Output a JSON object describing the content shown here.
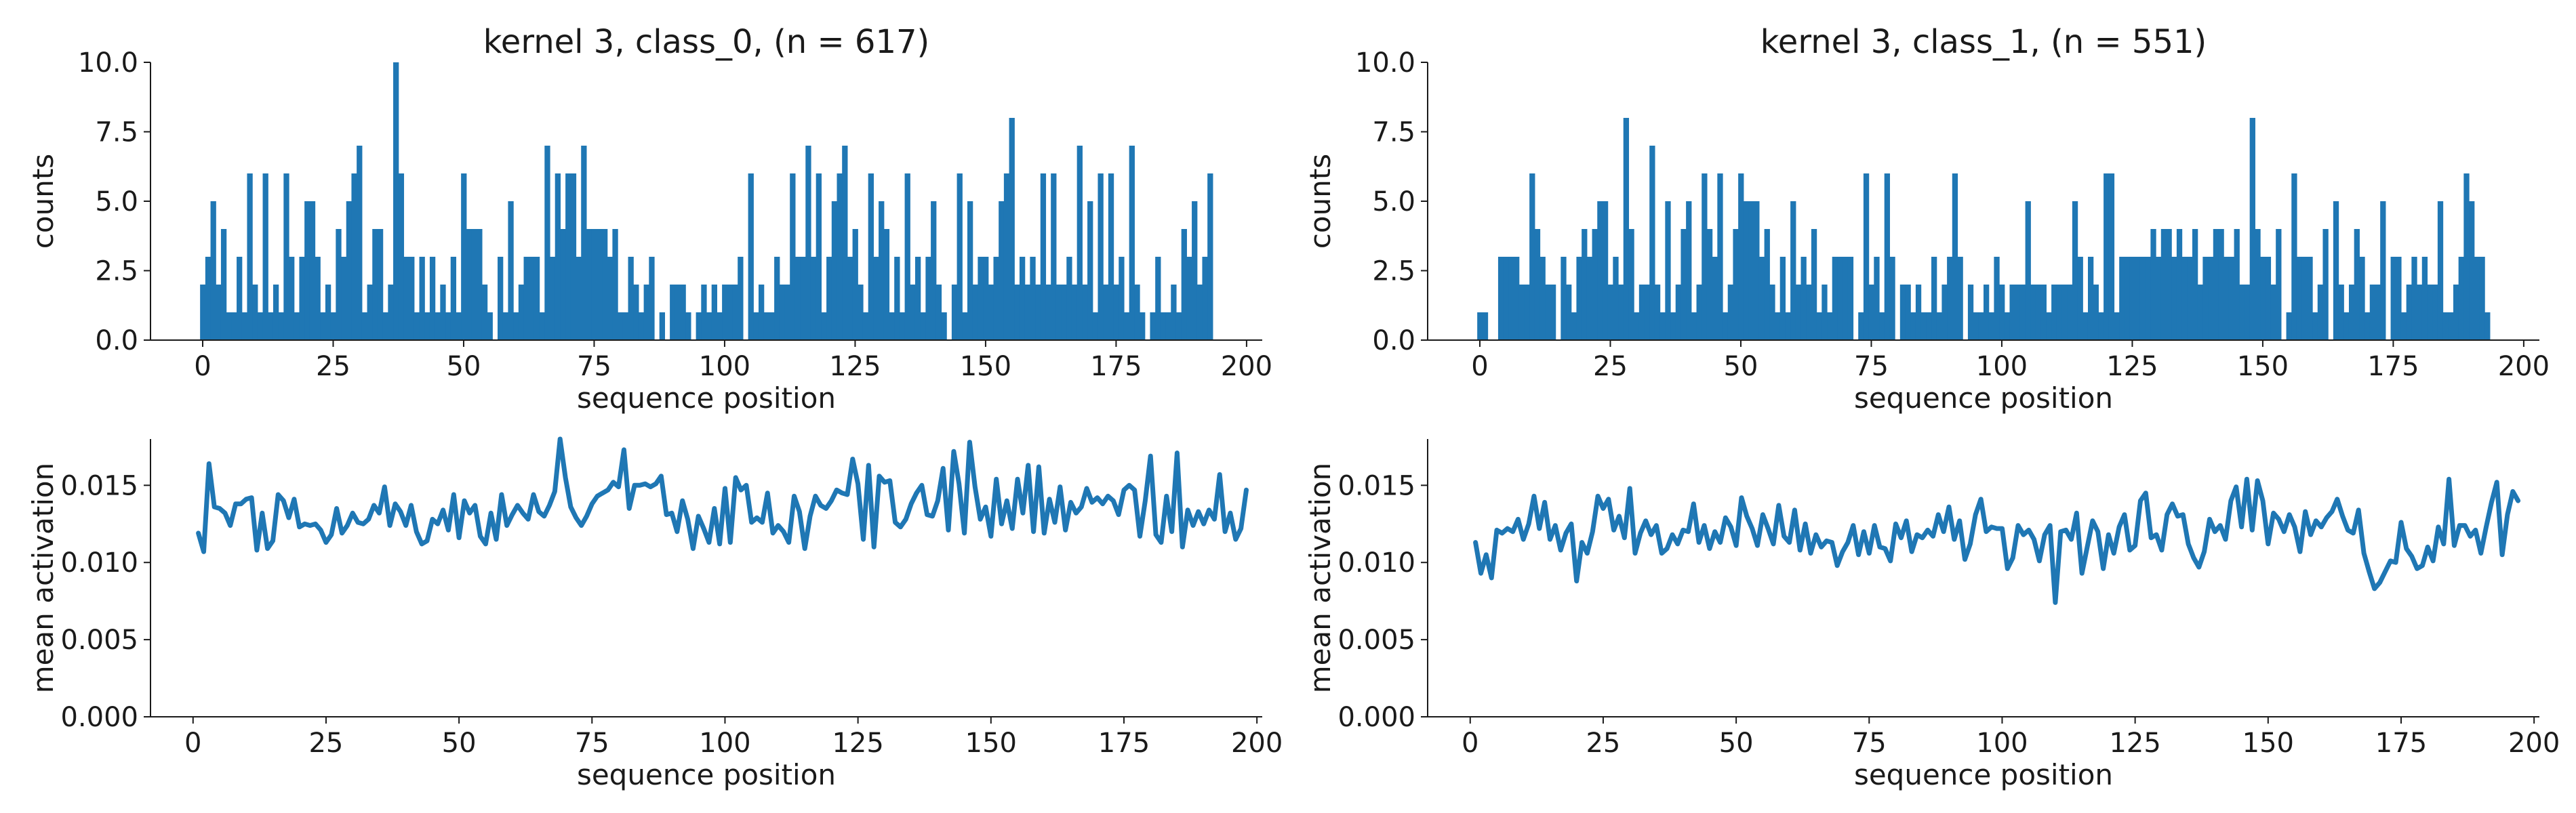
{
  "colors": {
    "series": "#1f77b4",
    "axis": "#1a1a1a",
    "background": "#ffffff"
  },
  "chart_data": [
    {
      "type": "bar",
      "title": "kernel 3, class_0, (n = 617)",
      "xlabel": "sequence position",
      "ylabel": "counts",
      "xlim": [
        -10,
        203
      ],
      "ylim": [
        0,
        10
      ],
      "xticks": [
        0,
        25,
        50,
        75,
        100,
        125,
        150,
        175,
        200
      ],
      "yticks": [
        0.0,
        2.5,
        5.0,
        7.5,
        10.0
      ],
      "grid": false,
      "note_values": "one bar per sequence position 0-193, heights estimated",
      "x_start": 0,
      "values": [
        2,
        3,
        5,
        2,
        4,
        1,
        1,
        3,
        1,
        6,
        2,
        1,
        6,
        1,
        2,
        1,
        6,
        3,
        1,
        3,
        5,
        5,
        3,
        1,
        2,
        1,
        4,
        3,
        5,
        6,
        7,
        1,
        2,
        4,
        4,
        1,
        2,
        10,
        6,
        3,
        3,
        1,
        3,
        1,
        3,
        1,
        2,
        1,
        3,
        1,
        6,
        4,
        4,
        4,
        2,
        1,
        0,
        3,
        1,
        5,
        1,
        2,
        3,
        3,
        3,
        1,
        7,
        3,
        6,
        4,
        6,
        6,
        3,
        7,
        4,
        4,
        4,
        4,
        3,
        4,
        1,
        1,
        3,
        2,
        1,
        2,
        3,
        0,
        1,
        0,
        2,
        2,
        2,
        1,
        0,
        1,
        2,
        1,
        2,
        1,
        2,
        2,
        2,
        3,
        0,
        6,
        1,
        2,
        1,
        1,
        3,
        2,
        2,
        6,
        3,
        3,
        7,
        3,
        6,
        1,
        3,
        5,
        6,
        7,
        3,
        4,
        2,
        1,
        6,
        3,
        5,
        4,
        1,
        3,
        1,
        6,
        2,
        3,
        1,
        3,
        5,
        2,
        1,
        0,
        2,
        6,
        1,
        5,
        2,
        3,
        3,
        2,
        3,
        5,
        6,
        8,
        2,
        3,
        2,
        3,
        2,
        6,
        2,
        6,
        2,
        2,
        3,
        2,
        7,
        2,
        5,
        1,
        6,
        2,
        6,
        2,
        3,
        1,
        7,
        2,
        1,
        0,
        1,
        3,
        1,
        1,
        2,
        1,
        4,
        3,
        5,
        2,
        3,
        6
      ]
    },
    {
      "type": "bar",
      "title": "kernel 3, class_1, (n = 551)",
      "xlabel": "sequence position",
      "ylabel": "counts",
      "xlim": [
        -10,
        203
      ],
      "ylim": [
        0,
        10
      ],
      "xticks": [
        0,
        25,
        50,
        75,
        100,
        125,
        150,
        175,
        200
      ],
      "yticks": [
        0.0,
        2.5,
        5.0,
        7.5,
        10.0
      ],
      "grid": false,
      "x_start": 0,
      "values": [
        1,
        1,
        0,
        0,
        3,
        3,
        3,
        3,
        2,
        2,
        6,
        4,
        3,
        2,
        2,
        0,
        3,
        2,
        1,
        3,
        4,
        3,
        4,
        5,
        5,
        2,
        3,
        2,
        8,
        4,
        1,
        2,
        2,
        7,
        2,
        1,
        5,
        1,
        2,
        4,
        5,
        1,
        2,
        6,
        4,
        3,
        6,
        1,
        2,
        4,
        6,
        5,
        5,
        5,
        3,
        4,
        2,
        1,
        3,
        1,
        5,
        2,
        3,
        2,
        4,
        1,
        2,
        1,
        3,
        3,
        3,
        3,
        0,
        1,
        6,
        2,
        3,
        1,
        6,
        3,
        0,
        2,
        2,
        1,
        2,
        1,
        1,
        3,
        1,
        2,
        3,
        6,
        3,
        0,
        2,
        1,
        1,
        2,
        1,
        3,
        2,
        1,
        2,
        2,
        2,
        5,
        2,
        2,
        2,
        1,
        2,
        2,
        2,
        2,
        5,
        3,
        1,
        3,
        2,
        1,
        6,
        6,
        1,
        3,
        3,
        3,
        3,
        3,
        3,
        4,
        3,
        4,
        4,
        3,
        4,
        3,
        3,
        4,
        2,
        3,
        3,
        4,
        4,
        3,
        3,
        4,
        2,
        2,
        8,
        4,
        3,
        3,
        2,
        4,
        0,
        1,
        6,
        3,
        3,
        3,
        1,
        2,
        4,
        0,
        5,
        2,
        1,
        2,
        4,
        3,
        1,
        2,
        2,
        5,
        0,
        3,
        3,
        1,
        2,
        3,
        2,
        3,
        2,
        2,
        5,
        1,
        1,
        2,
        3,
        6,
        5,
        3,
        3,
        1
      ]
    },
    {
      "type": "line",
      "title": "",
      "xlabel": "sequence position",
      "ylabel": "mean activation",
      "xlim": [
        -8,
        201
      ],
      "ylim": [
        0,
        0.018
      ],
      "xticks": [
        0,
        25,
        50,
        75,
        100,
        125,
        150,
        175,
        200
      ],
      "yticks": [
        0.0,
        0.005,
        0.01,
        0.015
      ],
      "ytick_labels": [
        "0.000",
        "0.005",
        "0.010",
        "0.015"
      ],
      "grid": false,
      "x_start": 1,
      "values": [
        0.0119,
        0.0107,
        0.0164,
        0.0136,
        0.0135,
        0.0132,
        0.0124,
        0.0138,
        0.0138,
        0.0141,
        0.0142,
        0.0108,
        0.0132,
        0.0109,
        0.0114,
        0.0144,
        0.014,
        0.0129,
        0.0141,
        0.0123,
        0.0125,
        0.0124,
        0.0125,
        0.0121,
        0.0113,
        0.0118,
        0.0135,
        0.0119,
        0.0124,
        0.0132,
        0.0126,
        0.0125,
        0.0128,
        0.0137,
        0.0132,
        0.0149,
        0.0124,
        0.0138,
        0.0133,
        0.0124,
        0.0137,
        0.012,
        0.0112,
        0.0114,
        0.0128,
        0.0125,
        0.0134,
        0.0121,
        0.0144,
        0.0116,
        0.014,
        0.0132,
        0.0137,
        0.0117,
        0.0112,
        0.0132,
        0.0115,
        0.0144,
        0.0124,
        0.0131,
        0.0137,
        0.0132,
        0.0128,
        0.0144,
        0.0133,
        0.013,
        0.0137,
        0.0146,
        0.018,
        0.0155,
        0.0136,
        0.0129,
        0.0124,
        0.013,
        0.0138,
        0.0143,
        0.0145,
        0.0147,
        0.0152,
        0.0149,
        0.0173,
        0.0135,
        0.015,
        0.015,
        0.0151,
        0.0149,
        0.0151,
        0.0156,
        0.0131,
        0.0132,
        0.012,
        0.014,
        0.0128,
        0.0109,
        0.013,
        0.0122,
        0.0113,
        0.0135,
        0.0112,
        0.0148,
        0.0113,
        0.0155,
        0.0147,
        0.015,
        0.0126,
        0.0129,
        0.0126,
        0.0145,
        0.0119,
        0.0124,
        0.012,
        0.0113,
        0.0143,
        0.0133,
        0.0109,
        0.013,
        0.0143,
        0.0137,
        0.0135,
        0.014,
        0.0147,
        0.0145,
        0.0144,
        0.0167,
        0.0151,
        0.0115,
        0.0163,
        0.011,
        0.0156,
        0.0152,
        0.0153,
        0.0126,
        0.0123,
        0.0128,
        0.0138,
        0.0145,
        0.015,
        0.0131,
        0.013,
        0.014,
        0.0161,
        0.0121,
        0.0172,
        0.0151,
        0.0119,
        0.0178,
        0.0149,
        0.0128,
        0.0136,
        0.0117,
        0.0154,
        0.0125,
        0.014,
        0.0122,
        0.0154,
        0.0132,
        0.0163,
        0.012,
        0.0162,
        0.0119,
        0.0141,
        0.0126,
        0.0149,
        0.0121,
        0.0139,
        0.0132,
        0.0136,
        0.0148,
        0.0139,
        0.0142,
        0.0138,
        0.0143,
        0.014,
        0.0131,
        0.0147,
        0.015,
        0.0147,
        0.0117,
        0.014,
        0.0169,
        0.0118,
        0.0113,
        0.0143,
        0.012,
        0.0171,
        0.011,
        0.0134,
        0.0124,
        0.0133,
        0.0125,
        0.0134,
        0.0128,
        0.0157,
        0.012,
        0.0132,
        0.0115,
        0.0122,
        0.0147
      ]
    },
    {
      "type": "line",
      "title": "",
      "xlabel": "sequence position",
      "ylabel": "mean activation",
      "xlim": [
        -8,
        201
      ],
      "ylim": [
        0,
        0.018
      ],
      "xticks": [
        0,
        25,
        50,
        75,
        100,
        125,
        150,
        175,
        200
      ],
      "yticks": [
        0.0,
        0.005,
        0.01,
        0.015
      ],
      "ytick_labels": [
        "0.000",
        "0.005",
        "0.010",
        "0.015"
      ],
      "grid": false,
      "x_start": 1,
      "values": [
        0.0113,
        0.0093,
        0.0105,
        0.009,
        0.0121,
        0.0119,
        0.0122,
        0.012,
        0.0128,
        0.0115,
        0.0125,
        0.0143,
        0.0122,
        0.0139,
        0.0115,
        0.0124,
        0.0108,
        0.0119,
        0.0125,
        0.0088,
        0.0113,
        0.0106,
        0.012,
        0.0143,
        0.0135,
        0.0141,
        0.0121,
        0.013,
        0.0116,
        0.0148,
        0.0106,
        0.0119,
        0.0127,
        0.0118,
        0.0124,
        0.0106,
        0.0109,
        0.0118,
        0.0112,
        0.0121,
        0.012,
        0.0138,
        0.0113,
        0.0124,
        0.0109,
        0.012,
        0.0113,
        0.0129,
        0.0123,
        0.0111,
        0.0142,
        0.013,
        0.0122,
        0.0111,
        0.0131,
        0.0122,
        0.0112,
        0.0137,
        0.0117,
        0.0113,
        0.0134,
        0.0108,
        0.0125,
        0.0106,
        0.0118,
        0.011,
        0.0114,
        0.0113,
        0.0098,
        0.0107,
        0.0113,
        0.0124,
        0.0105,
        0.012,
        0.0106,
        0.0124,
        0.011,
        0.0109,
        0.0101,
        0.0125,
        0.0116,
        0.0127,
        0.0107,
        0.0118,
        0.0116,
        0.0121,
        0.0117,
        0.0131,
        0.012,
        0.0136,
        0.0115,
        0.0127,
        0.0102,
        0.0112,
        0.0131,
        0.0141,
        0.012,
        0.0123,
        0.0122,
        0.0122,
        0.0096,
        0.0103,
        0.0124,
        0.0118,
        0.0121,
        0.0115,
        0.0101,
        0.0118,
        0.0124,
        0.0074,
        0.012,
        0.0121,
        0.0115,
        0.0132,
        0.0093,
        0.011,
        0.0127,
        0.012,
        0.0096,
        0.0118,
        0.0106,
        0.0123,
        0.0131,
        0.0108,
        0.0111,
        0.014,
        0.0145,
        0.0116,
        0.0118,
        0.0108,
        0.0131,
        0.0138,
        0.013,
        0.0131,
        0.0112,
        0.0103,
        0.0097,
        0.0107,
        0.0128,
        0.012,
        0.0124,
        0.0115,
        0.014,
        0.0149,
        0.0123,
        0.0154,
        0.0121,
        0.0153,
        0.014,
        0.0112,
        0.0132,
        0.0128,
        0.012,
        0.0131,
        0.0123,
        0.0107,
        0.0133,
        0.0118,
        0.0127,
        0.0123,
        0.0129,
        0.0133,
        0.0141,
        0.013,
        0.0121,
        0.0119,
        0.0134,
        0.0106,
        0.0094,
        0.0083,
        0.0087,
        0.0094,
        0.0101,
        0.01,
        0.0126,
        0.0109,
        0.0104,
        0.0096,
        0.0098,
        0.011,
        0.0101,
        0.0123,
        0.0112,
        0.0154,
        0.0111,
        0.0124,
        0.0124,
        0.0117,
        0.0121,
        0.0106,
        0.0123,
        0.0139,
        0.0152,
        0.0105,
        0.0131,
        0.0146,
        0.014
      ]
    }
  ]
}
